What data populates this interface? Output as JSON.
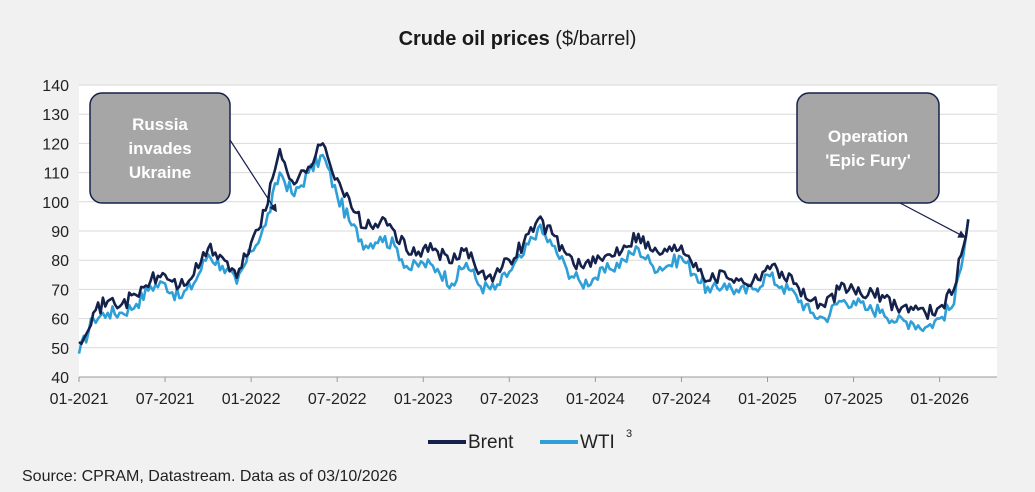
{
  "title": {
    "bold": "Crude oil prices",
    "rest": "($/barrel)"
  },
  "source": "Source: CPRAM, Datastream. Data as of 03/10/2026",
  "colors": {
    "brent": "#14214b",
    "wti": "#2f9fd8",
    "annotation_fill": "#a6a6a6",
    "annotation_border": "#14214b",
    "grid": "#d9d9d9",
    "axis": "#999999"
  },
  "chart_data": {
    "type": "line",
    "title": "Crude oil prices ($/barrel)",
    "xlabel": "",
    "ylabel": "",
    "ylim": [
      40,
      140
    ],
    "yticks": [
      40,
      50,
      60,
      70,
      80,
      90,
      100,
      110,
      120,
      130,
      140
    ],
    "xlim": [
      "2021-01",
      "2026-05"
    ],
    "xticks": [
      "01-2021",
      "07-2021",
      "01-2022",
      "07-2022",
      "01-2023",
      "07-2023",
      "01-2024",
      "07-2024",
      "01-2025",
      "07-2025",
      "01-2026"
    ],
    "grid": true,
    "legend_position": "bottom",
    "series": [
      {
        "name": "Brent",
        "x": [
          "2021-01",
          "2021-02",
          "2021-03",
          "2021-04",
          "2021-05",
          "2021-06",
          "2021-07",
          "2021-08",
          "2021-09",
          "2021-10",
          "2021-11",
          "2021-12",
          "2022-01",
          "2022-02",
          "2022-03",
          "2022-04",
          "2022-05",
          "2022-06",
          "2022-07",
          "2022-08",
          "2022-09",
          "2022-10",
          "2022-11",
          "2022-12",
          "2023-01",
          "2023-02",
          "2023-03",
          "2023-04",
          "2023-05",
          "2023-06",
          "2023-07",
          "2023-08",
          "2023-09",
          "2023-10",
          "2023-11",
          "2023-12",
          "2024-01",
          "2024-02",
          "2024-03",
          "2024-04",
          "2024-05",
          "2024-06",
          "2024-07",
          "2024-08",
          "2024-09",
          "2024-10",
          "2024-11",
          "2024-12",
          "2025-01",
          "2025-02",
          "2025-03",
          "2025-04",
          "2025-05",
          "2025-06",
          "2025-07",
          "2025-08",
          "2025-09",
          "2025-10",
          "2025-11",
          "2025-12",
          "2026-01",
          "2026-02",
          "2026-03"
        ],
        "values": [
          52,
          62,
          66,
          65,
          68,
          73,
          75,
          71,
          75,
          84,
          81,
          74,
          86,
          97,
          118,
          106,
          112,
          120,
          108,
          98,
          91,
          93,
          90,
          82,
          84,
          83,
          79,
          84,
          76,
          75,
          80,
          86,
          94,
          89,
          82,
          78,
          79,
          82,
          85,
          89,
          83,
          83,
          85,
          79,
          73,
          76,
          73,
          73,
          78,
          76,
          72,
          66,
          64,
          70,
          70,
          68,
          68,
          64,
          64,
          62,
          64,
          70,
          94
        ]
      },
      {
        "name": "WTI",
        "superscript": "3",
        "x": [
          "2021-01",
          "2021-02",
          "2021-03",
          "2021-04",
          "2021-05",
          "2021-06",
          "2021-07",
          "2021-08",
          "2021-09",
          "2021-10",
          "2021-11",
          "2021-12",
          "2022-01",
          "2022-02",
          "2022-03",
          "2022-04",
          "2022-05",
          "2022-06",
          "2022-07",
          "2022-08",
          "2022-09",
          "2022-10",
          "2022-11",
          "2022-12",
          "2023-01",
          "2023-02",
          "2023-03",
          "2023-04",
          "2023-05",
          "2023-06",
          "2023-07",
          "2023-08",
          "2023-09",
          "2023-10",
          "2023-11",
          "2023-12",
          "2024-01",
          "2024-02",
          "2024-03",
          "2024-04",
          "2024-05",
          "2024-06",
          "2024-07",
          "2024-08",
          "2024-09",
          "2024-10",
          "2024-11",
          "2024-12",
          "2025-01",
          "2025-02",
          "2025-03",
          "2025-04",
          "2025-05",
          "2025-06",
          "2025-07",
          "2025-08",
          "2025-09",
          "2025-10",
          "2025-11",
          "2025-12",
          "2026-01",
          "2026-02",
          "2026-03"
        ],
        "values": [
          48,
          60,
          62,
          62,
          65,
          71,
          72,
          67,
          72,
          82,
          78,
          72,
          83,
          92,
          110,
          102,
          110,
          116,
          102,
          92,
          85,
          88,
          85,
          77,
          79,
          77,
          72,
          79,
          71,
          70,
          76,
          82,
          91,
          85,
          77,
          72,
          74,
          77,
          80,
          84,
          78,
          78,
          81,
          75,
          69,
          72,
          69,
          70,
          75,
          71,
          68,
          62,
          60,
          66,
          66,
          63,
          63,
          59,
          59,
          57,
          60,
          65,
          94
        ]
      }
    ],
    "annotations": [
      {
        "text": "Russia invades Ukraine",
        "lines": [
          "Russia",
          "invades",
          "Ukraine"
        ],
        "target": {
          "x": "2022-03",
          "y": 97
        }
      },
      {
        "text": "Operation 'Epic Fury'",
        "lines": [
          "Operation",
          "'Epic Fury'"
        ],
        "target": {
          "x": "2026-03",
          "y": 88
        }
      }
    ]
  }
}
